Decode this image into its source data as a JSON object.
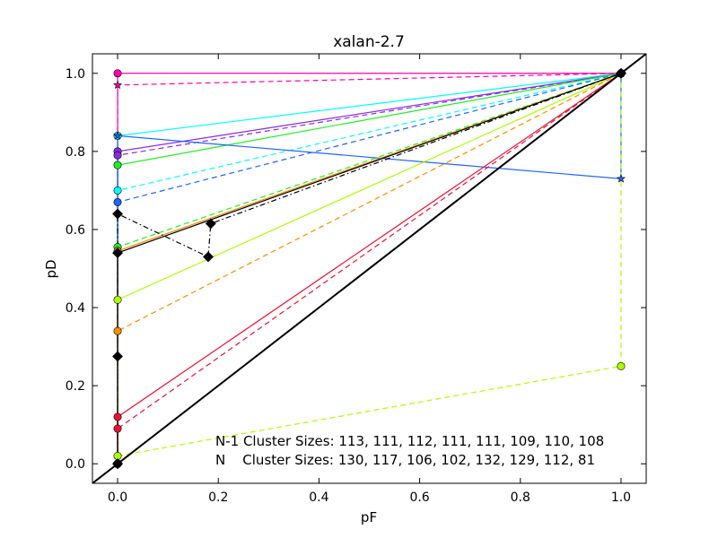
{
  "chart_data": {
    "type": "line",
    "title": "xalan-2.7",
    "xlabel": "pF",
    "ylabel": "pD",
    "xlim": [
      -0.05,
      1.05
    ],
    "ylim": [
      -0.05,
      1.05
    ],
    "xticks": [
      0.0,
      0.2,
      0.4,
      0.6,
      0.8,
      1.0
    ],
    "yticks": [
      0.0,
      0.2,
      0.4,
      0.6,
      0.8,
      1.0
    ],
    "xtick_labels": [
      "0.0",
      "0.2",
      "0.4",
      "0.6",
      "0.8",
      "1.0"
    ],
    "ytick_labels": [
      "0.0",
      "0.2",
      "0.4",
      "0.6",
      "0.8",
      "1.0"
    ],
    "grid": false,
    "annotations": [
      "N-1 Cluster Sizes: 113, 111, 112, 111, 111, 109, 110, 108",
      "N    Cluster Sizes: 130, 117, 106, 102, 132, 129, 112, 81"
    ],
    "series": [
      {
        "color": "#ff00aa",
        "dash": "solid",
        "marker": "circle",
        "x": [
          0,
          0,
          1
        ],
        "y": [
          0.0,
          1.0,
          1.0
        ]
      },
      {
        "color": "#ff00aa",
        "dash": "dashed",
        "marker": "star",
        "x": [
          0,
          0,
          1
        ],
        "y": [
          0.0,
          0.97,
          1.0
        ]
      },
      {
        "color": "#00ffff",
        "dash": "solid",
        "marker": "circle",
        "x": [
          0,
          0,
          1
        ],
        "y": [
          0.0,
          0.84,
          1.0
        ]
      },
      {
        "color": "#00ffff",
        "dash": "dashed",
        "marker": "circle",
        "x": [
          0,
          0,
          1
        ],
        "y": [
          0.0,
          0.7,
          1.0
        ]
      },
      {
        "color": "#8a2be2",
        "dash": "solid",
        "marker": "circle",
        "x": [
          0,
          0,
          1
        ],
        "y": [
          0.0,
          0.8,
          1.0
        ]
      },
      {
        "color": "#8a2be2",
        "dash": "dashed",
        "marker": "circle",
        "x": [
          0,
          0,
          1
        ],
        "y": [
          0.0,
          0.79,
          1.0
        ]
      },
      {
        "color": "#22ee22",
        "dash": "solid",
        "marker": "circle",
        "x": [
          0,
          0,
          1
        ],
        "y": [
          0.0,
          0.765,
          1.0
        ]
      },
      {
        "color": "#22ee22",
        "dash": "dashed",
        "marker": "circle",
        "x": [
          0,
          0,
          1
        ],
        "y": [
          0.0,
          0.555,
          1.0
        ]
      },
      {
        "color": "#1e64ff",
        "dash": "solid",
        "marker": "star",
        "x": [
          0,
          0,
          1,
          1
        ],
        "y": [
          0.0,
          0.84,
          0.73,
          1.0
        ]
      },
      {
        "color": "#1e64ff",
        "dash": "dashed",
        "marker": "circle",
        "x": [
          0,
          0,
          1
        ],
        "y": [
          0.0,
          0.67,
          1.0
        ]
      },
      {
        "color": "#aaff00",
        "dash": "solid",
        "marker": "circle",
        "x": [
          0,
          0,
          1
        ],
        "y": [
          0.0,
          0.42,
          1.0
        ]
      },
      {
        "color": "#aaff00",
        "dash": "dashed",
        "marker": "circle",
        "x": [
          0,
          1,
          1
        ],
        "y": [
          0.02,
          0.25,
          1.0
        ]
      },
      {
        "color": "#ff8c00",
        "dash": "solid",
        "marker": "circle",
        "x": [
          0,
          0,
          1
        ],
        "y": [
          0.0,
          0.545,
          1.0
        ]
      },
      {
        "color": "#ff8c00",
        "dash": "dashed",
        "marker": "circle",
        "x": [
          0,
          0,
          1
        ],
        "y": [
          0.0,
          0.34,
          1.0
        ]
      },
      {
        "color": "#ee1133",
        "dash": "solid",
        "marker": "circle",
        "x": [
          0,
          0,
          1
        ],
        "y": [
          0.0,
          0.12,
          1.0
        ]
      },
      {
        "color": "#ee1133",
        "dash": "dashed",
        "marker": "circle",
        "x": [
          0,
          0,
          1
        ],
        "y": [
          0.0,
          0.09,
          1.0
        ]
      },
      {
        "color": "#000000",
        "dash": "dashdot",
        "marker": "diamond",
        "x": [
          0,
          0,
          0.18,
          0.185,
          1
        ],
        "y": [
          0.0,
          0.64,
          0.53,
          0.615,
          1.0
        ]
      },
      {
        "color": "#000000",
        "dash": "solid",
        "marker": "diamond",
        "x": [
          0,
          0,
          0,
          1
        ],
        "y": [
          0.0,
          0.275,
          0.54,
          1.0
        ]
      },
      {
        "color": "#000000",
        "dash": "diagonal",
        "marker": "none",
        "x": [
          -0.05,
          1.05
        ],
        "y": [
          -0.05,
          1.05
        ]
      }
    ]
  }
}
